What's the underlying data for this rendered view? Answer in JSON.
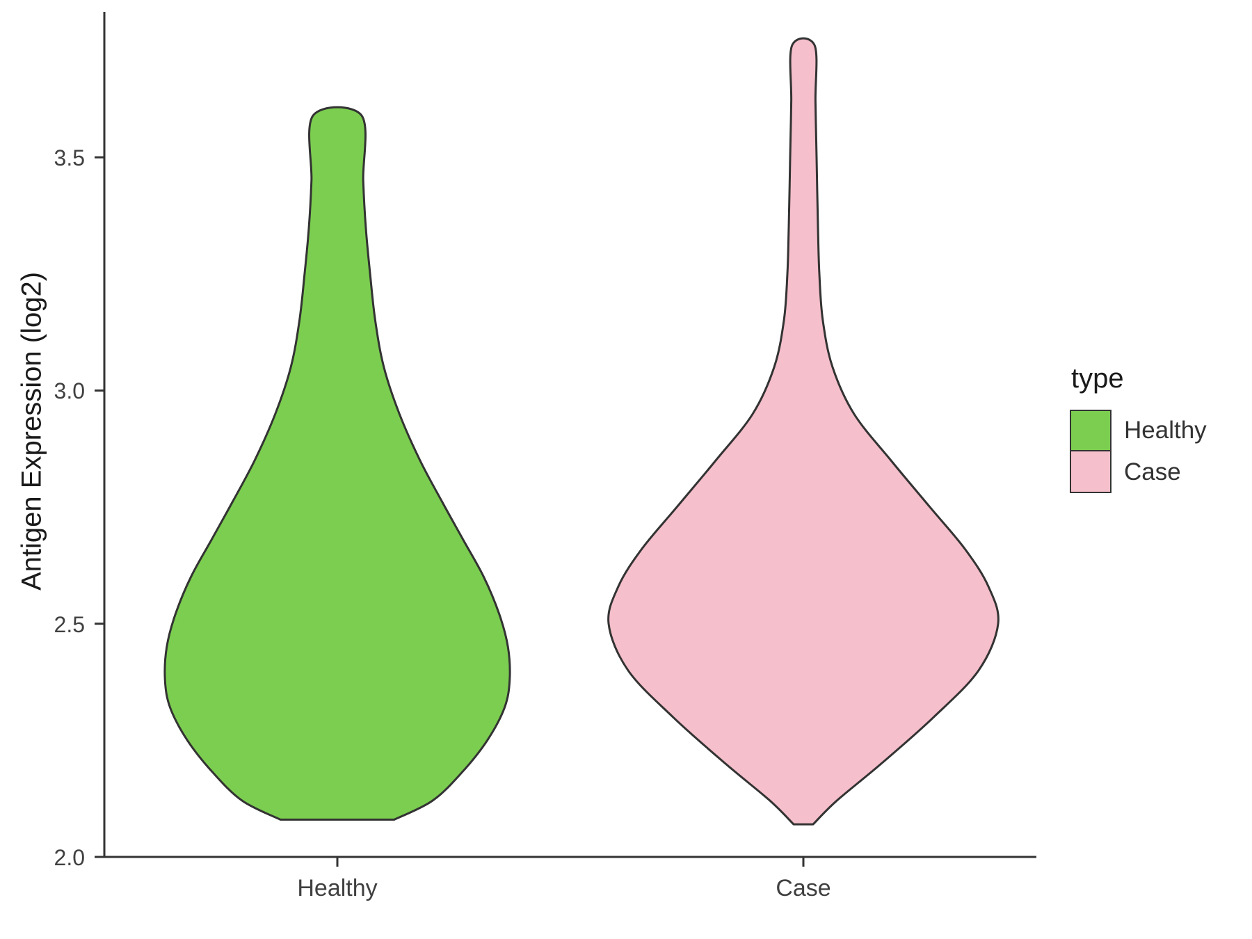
{
  "chart_data": {
    "type": "violin",
    "title": "",
    "xlabel": "",
    "ylabel": "Antigen Expression (log2)",
    "ylim": [
      2.0,
      3.8
    ],
    "yticks": [
      2.0,
      2.5,
      3.0,
      3.5
    ],
    "ytick_labels": [
      "2.0",
      "2.5",
      "3.0",
      "3.5"
    ],
    "categories": [
      "Healthy",
      "Case"
    ],
    "grid": "off",
    "legend": {
      "title": "type",
      "position": "right",
      "entries": [
        "Healthy",
        "Case"
      ]
    },
    "series": [
      {
        "name": "Healthy",
        "color": "#7CCE50",
        "outline": "#333333",
        "width_scale": 0.885,
        "value_range": [
          2.08,
          3.59
        ],
        "peak_value": 2.38,
        "profile": [
          [
            2.08,
            0.33
          ],
          [
            2.12,
            0.55
          ],
          [
            2.18,
            0.72
          ],
          [
            2.25,
            0.87
          ],
          [
            2.32,
            0.97
          ],
          [
            2.38,
            1.0
          ],
          [
            2.45,
            0.99
          ],
          [
            2.52,
            0.94
          ],
          [
            2.6,
            0.85
          ],
          [
            2.68,
            0.73
          ],
          [
            2.76,
            0.61
          ],
          [
            2.85,
            0.48
          ],
          [
            2.95,
            0.36
          ],
          [
            3.05,
            0.27
          ],
          [
            3.15,
            0.22
          ],
          [
            3.25,
            0.19
          ],
          [
            3.35,
            0.165
          ],
          [
            3.45,
            0.15
          ],
          [
            3.59,
            0.14
          ]
        ]
      },
      {
        "name": "Case",
        "color": "#F5BFCB",
        "outline": "#333333",
        "width_scale": 1.0,
        "value_range": [
          2.07,
          3.74
        ],
        "peak_value": 2.5,
        "profile": [
          [
            2.07,
            0.05
          ],
          [
            2.12,
            0.17
          ],
          [
            2.2,
            0.4
          ],
          [
            2.3,
            0.67
          ],
          [
            2.4,
            0.9
          ],
          [
            2.5,
            1.0
          ],
          [
            2.58,
            0.95
          ],
          [
            2.66,
            0.83
          ],
          [
            2.75,
            0.65
          ],
          [
            2.85,
            0.45
          ],
          [
            2.95,
            0.26
          ],
          [
            3.05,
            0.15
          ],
          [
            3.15,
            0.1
          ],
          [
            3.25,
            0.082
          ],
          [
            3.35,
            0.075
          ],
          [
            3.5,
            0.068
          ],
          [
            3.62,
            0.062
          ],
          [
            3.74,
            0.058
          ]
        ]
      }
    ]
  }
}
